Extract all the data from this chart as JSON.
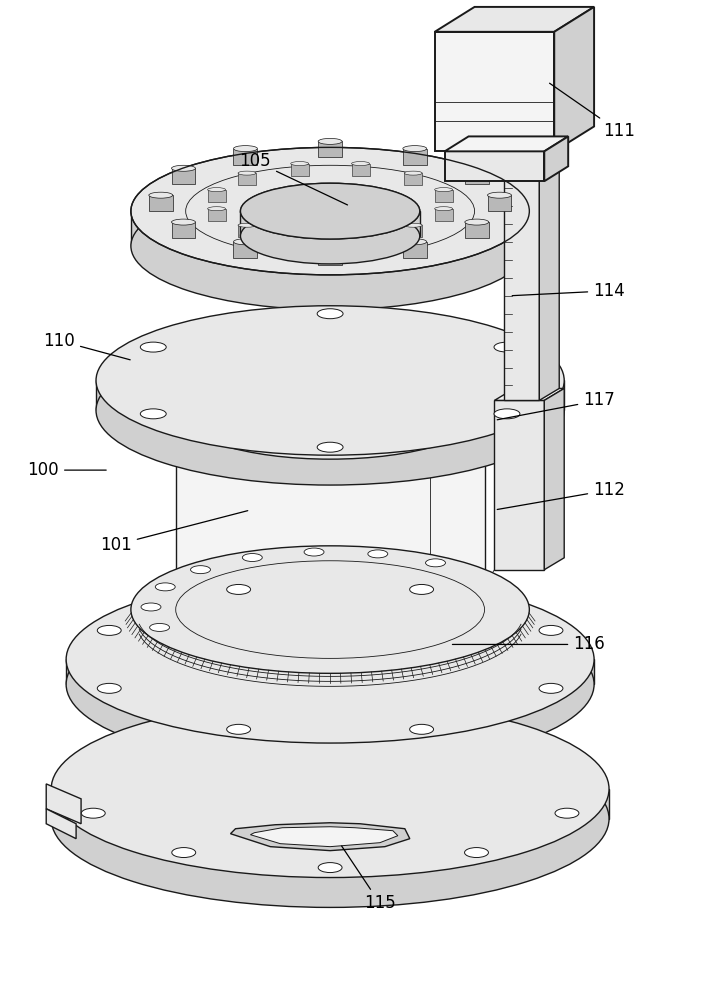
{
  "bg_color": "#ffffff",
  "line_color": "#1a1a1a",
  "fill_light": "#e8e8e8",
  "fill_mid": "#d0d0d0",
  "fill_dark": "#b8b8b8",
  "fill_very_light": "#f4f4f4",
  "fill_white": "#ffffff",
  "lw": 1.0,
  "lw_thin": 0.6,
  "lw_thick": 1.4,
  "font_size": 12,
  "figsize": [
    7.19,
    10.0
  ],
  "dpi": 100
}
